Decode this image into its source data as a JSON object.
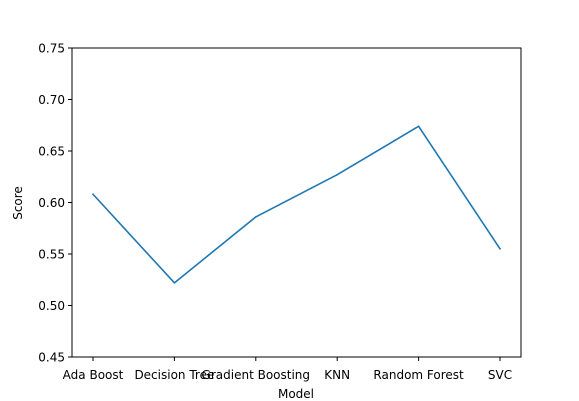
{
  "chart_data": {
    "type": "line",
    "title": "",
    "xlabel": "Model",
    "ylabel": "Score",
    "categories": [
      "Ada Boost",
      "Decision Tree",
      "Gradient Boosting",
      "KNN",
      "Random Forest",
      "SVC"
    ],
    "series": [
      {
        "values": [
          0.608,
          0.522,
          0.586,
          0.627,
          0.674,
          0.555
        ],
        "color": "#1f77b4"
      }
    ],
    "ylim": [
      0.45,
      0.75
    ],
    "yticks": [
      "0.45",
      "0.50",
      "0.55",
      "0.60",
      "0.65",
      "0.70",
      "0.75"
    ],
    "grid": false,
    "legend": "none"
  }
}
